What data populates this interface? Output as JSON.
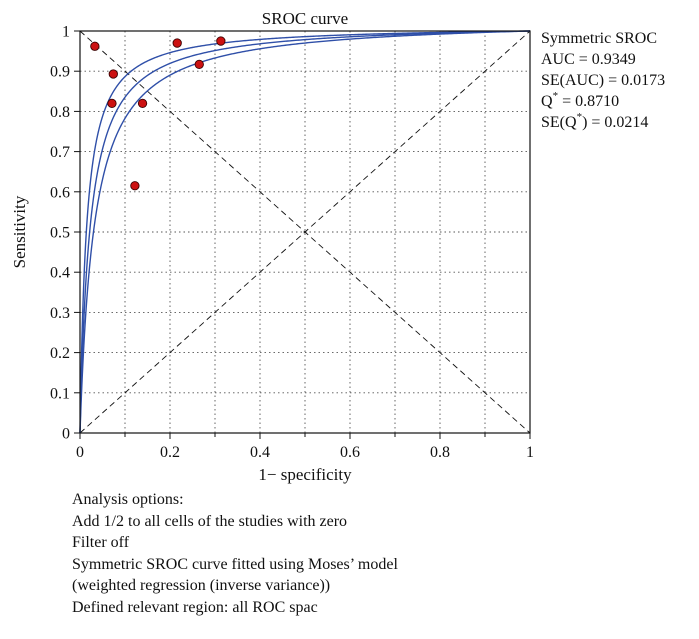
{
  "chart_data": {
    "type": "scatter",
    "title": "SROC curve",
    "xlabel": "1− specificity",
    "ylabel": "Sensitivity",
    "xlim": [
      0,
      1
    ],
    "ylim": [
      0,
      1
    ],
    "x_ticks": [
      "0",
      "0.2",
      "0.4",
      "0.6",
      "0.8",
      "1"
    ],
    "y_ticks": [
      "0",
      "0.1",
      "0.2",
      "0.3",
      "0.4",
      "0.5",
      "0.6",
      "0.7",
      "0.8",
      "0.9",
      "1"
    ],
    "grid": true,
    "points": [
      {
        "x": 0.033,
        "y": 0.962
      },
      {
        "x": 0.074,
        "y": 0.893
      },
      {
        "x": 0.071,
        "y": 0.82
      },
      {
        "x": 0.139,
        "y": 0.82
      },
      {
        "x": 0.122,
        "y": 0.615
      },
      {
        "x": 0.216,
        "y": 0.97
      },
      {
        "x": 0.313,
        "y": 0.975
      },
      {
        "x": 0.265,
        "y": 0.917
      }
    ],
    "point_color": "#cc1111",
    "curve_color": "#2f4fa8",
    "curves": [
      {
        "role": "sroc",
        "auc": 0.9349
      },
      {
        "role": "ci-upper",
        "auc": 0.9522
      },
      {
        "role": "ci-lower",
        "auc": 0.9176
      }
    ]
  },
  "stats": {
    "heading": "Symmetric SROC",
    "auc": "AUC = 0.9349",
    "se_auc": "SE(AUC) = 0.0173",
    "q_prefix": "Q",
    "q_star": "*",
    "q_value": " = 0.8710",
    "se_q_prefix": "SE(Q",
    "se_q_star": "*",
    "se_q_value": ") = 0.0214"
  },
  "analysis_options": [
    "Analysis options:",
    "Add 1/2 to all cells of the studies with zero",
    "Filter off",
    "Symmetric SROC curve fitted using Moses’ model",
    "(weighted regression (inverse variance))",
    "Defined relevant region: all ROC spac"
  ]
}
